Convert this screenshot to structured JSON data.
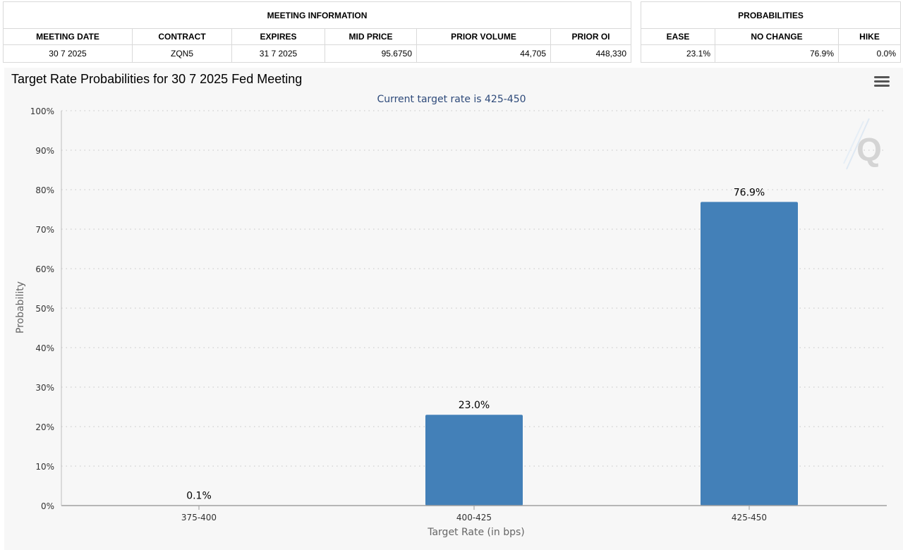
{
  "meeting_info": {
    "group_title": "MEETING INFORMATION",
    "headers": [
      "MEETING DATE",
      "CONTRACT",
      "EXPIRES",
      "MID PRICE",
      "PRIOR VOLUME",
      "PRIOR OI"
    ],
    "row": [
      "30 7 2025",
      "ZQN5",
      "31 7 2025",
      "95.6750",
      "44,705",
      "448,330"
    ]
  },
  "probabilities": {
    "group_title": "PROBABILITIES",
    "headers": [
      "EASE",
      "NO CHANGE",
      "HIKE"
    ],
    "row": [
      "23.1%",
      "76.9%",
      "0.0%"
    ]
  },
  "chart_data": {
    "type": "bar",
    "title": "Target Rate Probabilities for 30 7 2025 Fed Meeting",
    "subtitle": "Current target rate is 425-450",
    "xlabel": "Target Rate (in bps)",
    "ylabel": "Probability",
    "categories": [
      "375-400",
      "400-425",
      "425-450"
    ],
    "values": [
      0.1,
      23.0,
      76.9
    ],
    "data_labels": [
      "0.1%",
      "23.0%",
      "76.9%"
    ],
    "ylim": [
      0,
      100
    ],
    "yticks": [
      0,
      10,
      20,
      30,
      40,
      50,
      60,
      70,
      80,
      90,
      100
    ],
    "ytick_labels": [
      "0%",
      "10%",
      "20%",
      "30%",
      "40%",
      "50%",
      "60%",
      "70%",
      "80%",
      "90%",
      "100%"
    ],
    "grid": true,
    "legend": "none",
    "bar_color": "#4380b8",
    "subtitle_color": "#2e4a7a",
    "watermark": "Q"
  }
}
